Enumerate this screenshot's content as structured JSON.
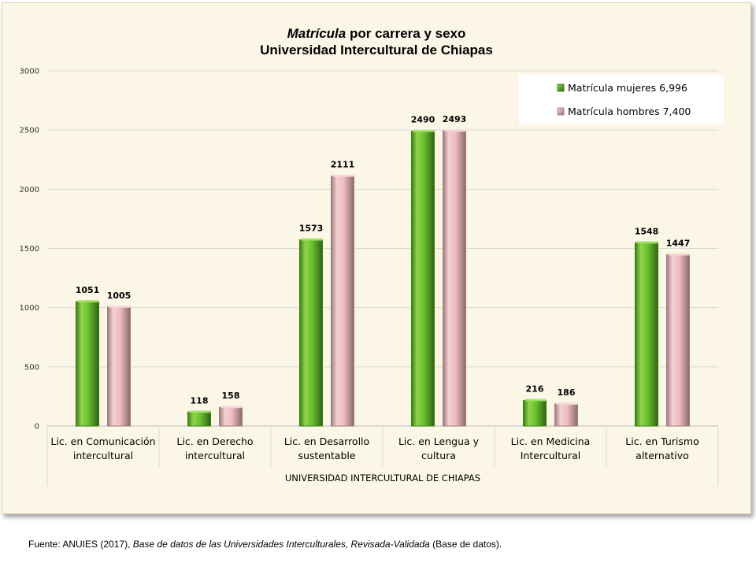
{
  "chart_data": {
    "type": "bar",
    "title_italic": "Matrícula",
    "title_rest": " por carrera y sexo",
    "subtitle": "Universidad Intercultural de Chiapas",
    "categories": [
      [
        "Lic. en Comunicación",
        "intercultural"
      ],
      [
        "Lic. en Derecho",
        "intercultural"
      ],
      [
        "Lic. en Desarrollo",
        "sustentable"
      ],
      [
        "Lic. en Lengua y",
        "cultura"
      ],
      [
        "Lic. en Medicina",
        "Intercultural"
      ],
      [
        "Lic. en Turismo",
        "alternativo"
      ]
    ],
    "group_label": "UNIVERSIDAD INTERCULTURAL DE CHIAPAS",
    "series": [
      {
        "name": "Matrícula mujeres  6,996",
        "color": "#6abf2f",
        "values": [
          1051,
          118,
          1573,
          2490,
          216,
          1548
        ]
      },
      {
        "name": "Matrícula hombres 7,400",
        "color": "#f0bcbf",
        "values": [
          1005,
          158,
          2111,
          2493,
          186,
          1447
        ]
      }
    ],
    "yticks": [
      0,
      500,
      1000,
      1500,
      2000,
      2500,
      3000
    ],
    "ylim": [
      0,
      3000
    ],
    "grid": true,
    "legend_position": "top-right"
  },
  "footer": {
    "prefix": "Fuente: ANUIES (2017), ",
    "italic": "Base de datos de las Universidades  Interculturales, Revisada-Validada",
    "suffix": "  (Base de datos)."
  }
}
